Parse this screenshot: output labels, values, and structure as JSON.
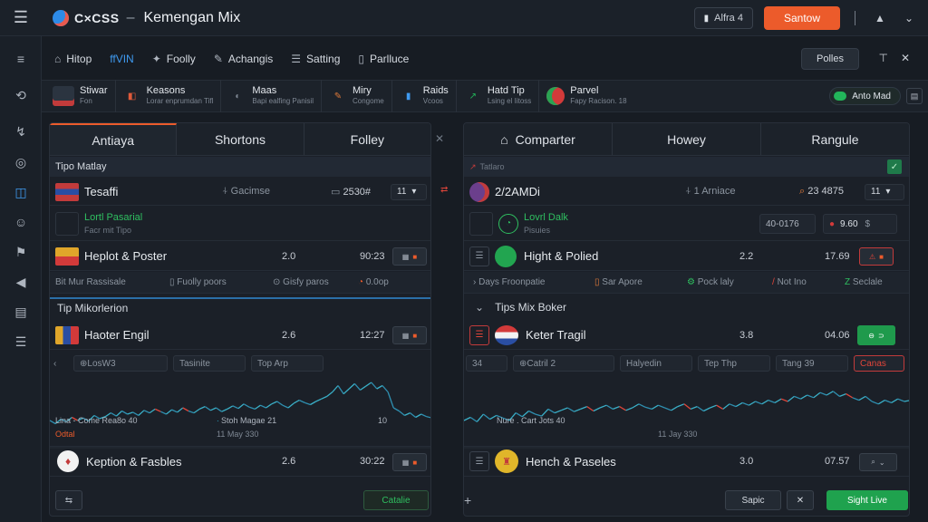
{
  "topbar": {
    "logo_text": "C×CSS",
    "title": "Kemengan Mix",
    "pill_label": "Alfra 4",
    "cta_label": "Santow",
    "colors": {
      "accent": "#ec5b2b",
      "blue": "#3f9af0",
      "green": "#22b55a"
    }
  },
  "menu": {
    "items": [
      {
        "label": "Hitop",
        "icon": "home-icon"
      },
      {
        "label": "ffVIN",
        "icon": "none"
      },
      {
        "label": "Foolly",
        "icon": "wand-icon"
      },
      {
        "label": "Achangis",
        "icon": "pencil-icon"
      },
      {
        "label": "Satting",
        "icon": "sliders-icon"
      },
      {
        "label": "Parlluce",
        "icon": "file-icon"
      }
    ],
    "right_button": "Polles"
  },
  "strip": {
    "markets": [
      {
        "name": "Stiwar",
        "sub": "Fon"
      },
      {
        "name": "Keasons",
        "sub": "Lorar enprumdan Tifl"
      },
      {
        "name": "Maas",
        "sub": "Bapi ealfing Panisil"
      },
      {
        "name": "Miry",
        "sub": "Congome"
      },
      {
        "name": "Raids",
        "sub": "Vcoos"
      },
      {
        "name": "Hatd Tip",
        "sub": "Lsing el Iitoss"
      },
      {
        "name": "Parvel",
        "sub": "Fapy Racison. 18"
      }
    ],
    "toggle_label": "Anto Mad"
  },
  "left": {
    "tabs": [
      "Antiaya",
      "Shortons",
      "Folley"
    ],
    "section1": "Tipo Matlay",
    "r1": {
      "name": "Tesaffi",
      "mid": "Gacimse",
      "val": "2530#",
      "sel": "11"
    },
    "r1_sub": {
      "a": "Lortl Pasarial",
      "b": "Facr mit Tipo"
    },
    "r2": {
      "name": "Heplot & Poster",
      "v1": "2.0",
      "v2": "90:23"
    },
    "filters": [
      "Bit Mur Rassisale",
      "Fuolly poors",
      "Gisfy paros",
      "0.0op"
    ],
    "section2": "Tip Mikorlerion",
    "r3": {
      "name": "Haoter Engil",
      "v1": "2.6",
      "v2": "12:27"
    },
    "chips": [
      "LosW3",
      "Tasinite",
      "Top Arp"
    ],
    "chart_labels": {
      "a": "Lina - Come Rea8o 40",
      "b": "Stoh Magae 21",
      "c": "Odtal",
      "d": "11 May 330",
      "e": "10"
    },
    "r4": {
      "name": "Keption & Fasbles",
      "v1": "2.6",
      "v2": "30:22"
    },
    "footer_btn": "Catalie"
  },
  "right": {
    "tabs": [
      "Comparter",
      "Howey",
      "Rangule"
    ],
    "section1": "Tatlaro",
    "r1": {
      "name": "2/2AMDi",
      "mid": "1 Arniace",
      "val": "23 4875",
      "sel": "11"
    },
    "r1_sub": {
      "a": "Lovrl Dalk",
      "b": "Pisuies",
      "v": "40-0176",
      "v2": "9.60"
    },
    "r2": {
      "name": "Hight & Polied",
      "v1": "2.2",
      "v2": "17.69"
    },
    "filters": [
      "Days Froonpatie",
      "Sar Apore",
      "Pock laly",
      "Not Ino",
      "Seclale"
    ],
    "section2": "Tips Mix Boker",
    "r3": {
      "name": "Keter Tragil",
      "v1": "3.8",
      "v2": "04.06"
    },
    "chips": [
      "34",
      "Catril 2",
      "Halyedin",
      "Tep Thp",
      "Tang 39",
      "Canas"
    ],
    "chart_labels": {
      "a": "Nure . Cart Jots 40",
      "b": "11 Jay 330"
    },
    "r4": {
      "name": "Hench & Paseles",
      "v1": "3.0",
      "v2": "07.57"
    },
    "footer": {
      "cancel": "Sapic",
      "primary": "Sight Live"
    }
  },
  "chart_left": {
    "values": [
      0.4,
      0.35,
      0.42,
      0.38,
      0.45,
      0.4,
      0.44,
      0.39,
      0.48,
      0.43,
      0.46,
      0.52,
      0.47,
      0.55,
      0.5,
      0.53,
      0.48,
      0.56,
      0.52,
      0.58,
      0.54,
      0.5,
      0.57,
      0.53,
      0.6,
      0.55,
      0.52,
      0.58,
      0.62,
      0.56,
      0.6,
      0.54,
      0.58,
      0.63,
      0.59,
      0.66,
      0.61,
      0.58,
      0.64,
      0.6,
      0.66,
      0.7,
      0.64,
      0.6,
      0.67,
      0.72,
      0.68,
      0.65,
      0.7,
      0.74,
      0.78,
      0.85,
      0.95,
      0.82,
      0.9,
      0.98,
      0.88,
      0.94,
      1.0,
      0.9,
      0.95,
      0.85,
      0.6,
      0.55,
      0.48,
      0.52,
      0.45,
      0.5,
      0.46,
      0.44
    ]
  },
  "chart_right": {
    "values": [
      0.4,
      0.45,
      0.38,
      0.5,
      0.42,
      0.48,
      0.44,
      0.4,
      0.52,
      0.46,
      0.55,
      0.5,
      0.47,
      0.58,
      0.52,
      0.56,
      0.6,
      0.54,
      0.58,
      0.62,
      0.55,
      0.6,
      0.64,
      0.58,
      0.62,
      0.56,
      0.6,
      0.66,
      0.61,
      0.58,
      0.64,
      0.6,
      0.56,
      0.62,
      0.66,
      0.58,
      0.62,
      0.55,
      0.6,
      0.64,
      0.58,
      0.66,
      0.62,
      0.68,
      0.64,
      0.7,
      0.66,
      0.72,
      0.68,
      0.74,
      0.7,
      0.78,
      0.74,
      0.8,
      0.76,
      0.84,
      0.8,
      0.86,
      0.78,
      0.82,
      0.76,
      0.72,
      0.78,
      0.7,
      0.66,
      0.72,
      0.68,
      0.74,
      0.7,
      0.72
    ]
  }
}
